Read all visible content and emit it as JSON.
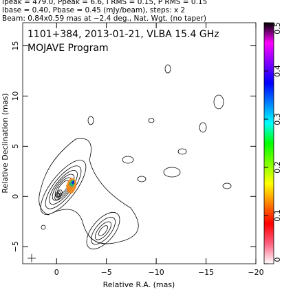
{
  "chart_data": {
    "type": "contour",
    "header": [
      "Ipeak = 479.0, Ppeak = 6.6, I RMS = 0.15, P RMS = 0.15",
      "Ibase = 0.40, Pbase = 0.45 (mJy/beam), steps: x 2",
      "Beam: 0.84x0.59 mas at −2.4 deg., Nat. Wgt. (no taper)"
    ],
    "title": "1101+384, 2013-01-21, VLBA 15.4 GHz",
    "subtitle": "MOJAVE Program",
    "xlabel": "Relative R.A. (mas)",
    "ylabel": "Relative Declination (mas)",
    "xlim": [
      3.4,
      -20
    ],
    "ylim": [
      -6.7,
      17.3
    ],
    "xticks": [
      0,
      {
        "value": -5,
        "label": "−5"
      },
      {
        "value": -10,
        "label": "−10"
      },
      {
        "value": -15,
        "label": "−15"
      },
      {
        "value": -20,
        "label": "−20"
      }
    ],
    "yticks": [
      {
        "value": -5,
        "label": "−5"
      },
      0,
      5,
      10,
      15
    ],
    "colorbar": {
      "lim": [
        0,
        0.5
      ],
      "ticks": [
        0,
        0.1,
        0.2,
        0.3,
        0.4,
        0.5
      ],
      "colors": [
        "#ffffff",
        "#ff6080",
        "#ff0000",
        "#ff8000",
        "#ffff00",
        "#80ff00",
        "#00ff00",
        "#00ffff",
        "#0080ff",
        "#0000ff",
        "#8000ff",
        "#ff00ff",
        "#000000"
      ]
    }
  }
}
